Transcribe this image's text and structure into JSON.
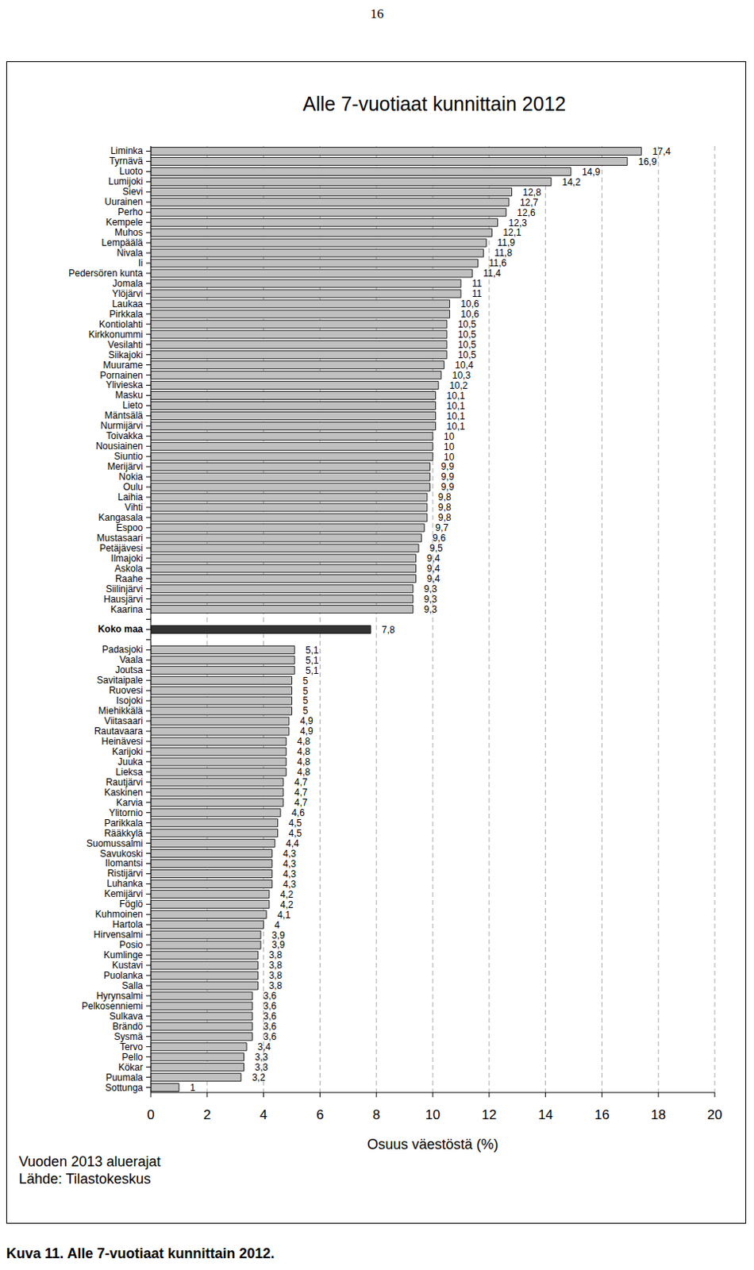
{
  "page_number": "16",
  "caption": "Kuva 11. Alle 7-vuotiaat kunnittain 2012.",
  "chart_data": {
    "type": "bar",
    "orientation": "horizontal",
    "title": "Alle 7-vuotiaat kunnittain 2012",
    "x_label": "Osuus väestöstä (%)",
    "annotations": [
      "Vuoden 2013 aluerajat",
      "Lähde: Tilastokeskus"
    ],
    "categories": [
      "Liminka",
      "Tyrnävä",
      "Luoto",
      "Lumijoki",
      "Sievi",
      "Uurainen",
      "Perho",
      "Kempele",
      "Muhos",
      "Lempäälä",
      "Nivala",
      "Ii",
      "Pedersören kunta",
      "Jomala",
      "Ylöjärvi",
      "Laukaa",
      "Pirkkala",
      "Kontiolahti",
      "Kirkkonummi",
      "Vesilahti",
      "Siikajoki",
      "Muurame",
      "Pornainen",
      "Ylivieska",
      "Masku",
      "Lieto",
      "Mäntsälä",
      "Nurmijärvi",
      "Toivakka",
      "Nousiainen",
      "Siuntio",
      "Merijärvi",
      "Nokia",
      "Oulu",
      "Laihia",
      "Vihti",
      "Kangasala",
      "Espoo",
      "Mustasaari",
      "Petäjävesi",
      "Ilmajoki",
      "Askola",
      "Raahe",
      "Siilinjärvi",
      "Hausjärvi",
      "Kaarina",
      null,
      "Koko maa",
      null,
      "Padasjoki",
      "Vaala",
      "Joutsa",
      "Savitaipale",
      "Ruovesi",
      "Isojoki",
      "Miehikkälä",
      "Viitasaari",
      "Rautavaara",
      "Heinävesi",
      "Karijoki",
      "Juuka",
      "Lieksa",
      "Rautjärvi",
      "Kaskinen",
      "Karvia",
      "Ylitornio",
      "Parikkala",
      "Rääkkylä",
      "Suomussalmi",
      "Savukoski",
      "Ilomantsi",
      "Ristijärvi",
      "Luhanka",
      "Kemijärvi",
      "Föglö",
      "Kuhmoinen",
      "Hartola",
      "Hirvensalmi",
      "Posio",
      "Kumlinge",
      "Kustavi",
      "Puolanka",
      "Salla",
      "Hyrynsalmi",
      "Pelkosenniemi",
      "Sulkava",
      "Brändö",
      "Sysmä",
      "Tervo",
      "Pello",
      "Kökar",
      "Puumala",
      "Sottunga"
    ],
    "values": [
      17.4,
      16.9,
      14.9,
      14.2,
      12.8,
      12.7,
      12.6,
      12.3,
      12.1,
      11.9,
      11.8,
      11.6,
      11.4,
      11,
      11,
      10.6,
      10.6,
      10.5,
      10.5,
      10.5,
      10.5,
      10.4,
      10.3,
      10.2,
      10.1,
      10.1,
      10.1,
      10.1,
      10,
      10,
      10,
      9.9,
      9.9,
      9.9,
      9.8,
      9.8,
      9.8,
      9.7,
      9.6,
      9.5,
      9.4,
      9.4,
      9.4,
      9.3,
      9.3,
      9.3,
      null,
      7.8,
      null,
      5.1,
      5.1,
      5.1,
      5,
      5,
      5,
      5,
      4.9,
      4.9,
      4.8,
      4.8,
      4.8,
      4.8,
      4.7,
      4.7,
      4.7,
      4.6,
      4.5,
      4.5,
      4.4,
      4.3,
      4.3,
      4.3,
      4.3,
      4.2,
      4.2,
      4.1,
      4,
      3.9,
      3.9,
      3.8,
      3.8,
      3.8,
      3.8,
      3.6,
      3.6,
      3.6,
      3.6,
      3.6,
      3.4,
      3.3,
      3.3,
      3.2,
      1
    ],
    "value_labels": [
      "17,4",
      "16,9",
      "14,9",
      "14,2",
      "12,8",
      "12,7",
      "12,6",
      "12,3",
      "12,1",
      "11,9",
      "11,8",
      "11,6",
      "11,4",
      "11",
      "11",
      "10,6",
      "10,6",
      "10,5",
      "10,5",
      "10,5",
      "10,5",
      "10,4",
      "10,3",
      "10,2",
      "10,1",
      "10,1",
      "10,1",
      "10,1",
      "10",
      "10",
      "10",
      "9,9",
      "9,9",
      "9,9",
      "9,8",
      "9,8",
      "9,8",
      "9,7",
      "9,6",
      "9,5",
      "9,4",
      "9,4",
      "9,4",
      "9,3",
      "9,3",
      "9,3",
      null,
      "7,8",
      null,
      "5,1",
      "5,1",
      "5,1",
      "5",
      "5",
      "5",
      "5",
      "4,9",
      "4,9",
      "4,8",
      "4,8",
      "4,8",
      "4,8",
      "4,7",
      "4,7",
      "4,7",
      "4,6",
      "4,5",
      "4,5",
      "4,4",
      "4,3",
      "4,3",
      "4,3",
      "4,3",
      "4,2",
      "4,2",
      "4,1",
      "4",
      "3,9",
      "3,9",
      "3,8",
      "3,8",
      "3,8",
      "3,8",
      "3,6",
      "3,6",
      "3,6",
      "3,6",
      "3,6",
      "3,4",
      "3,3",
      "3,3",
      "3,2",
      "1"
    ],
    "colors": [
      "#c0c0c0",
      "#c0c0c0",
      "#c0c0c0",
      "#c0c0c0",
      "#c0c0c0",
      "#c0c0c0",
      "#c0c0c0",
      "#c0c0c0",
      "#c0c0c0",
      "#c0c0c0",
      "#c0c0c0",
      "#c0c0c0",
      "#c0c0c0",
      "#c0c0c0",
      "#c0c0c0",
      "#c0c0c0",
      "#c0c0c0",
      "#c0c0c0",
      "#c0c0c0",
      "#c0c0c0",
      "#c0c0c0",
      "#c0c0c0",
      "#c0c0c0",
      "#c0c0c0",
      "#c0c0c0",
      "#c0c0c0",
      "#c0c0c0",
      "#c0c0c0",
      "#c0c0c0",
      "#c0c0c0",
      "#c0c0c0",
      "#c0c0c0",
      "#c0c0c0",
      "#c0c0c0",
      "#c0c0c0",
      "#c0c0c0",
      "#c0c0c0",
      "#c0c0c0",
      "#c0c0c0",
      "#c0c0c0",
      "#c0c0c0",
      "#c0c0c0",
      "#c0c0c0",
      "#c0c0c0",
      "#c0c0c0",
      "#c0c0c0",
      null,
      "#333333",
      null,
      "#c0c0c0",
      "#c0c0c0",
      "#c0c0c0",
      "#c0c0c0",
      "#c0c0c0",
      "#c0c0c0",
      "#c0c0c0",
      "#c0c0c0",
      "#c0c0c0",
      "#c0c0c0",
      "#c0c0c0",
      "#c0c0c0",
      "#c0c0c0",
      "#c0c0c0",
      "#c0c0c0",
      "#c0c0c0",
      "#c0c0c0",
      "#c0c0c0",
      "#c0c0c0",
      "#c0c0c0",
      "#c0c0c0",
      "#c0c0c0",
      "#c0c0c0",
      "#c0c0c0",
      "#c0c0c0",
      "#c0c0c0",
      "#c0c0c0",
      "#c0c0c0",
      "#c0c0c0",
      "#c0c0c0",
      "#c0c0c0",
      "#c0c0c0",
      "#c0c0c0",
      "#c0c0c0",
      "#c0c0c0",
      "#c0c0c0",
      "#c0c0c0",
      "#c0c0c0",
      "#c0c0c0",
      "#c0c0c0",
      "#c0c0c0",
      "#c0c0c0",
      "#c0c0c0",
      "#c0c0c0"
    ],
    "xlim": [
      0,
      20
    ],
    "xticks": [
      0,
      2,
      4,
      6,
      8,
      10,
      12,
      14,
      16,
      18,
      20
    ],
    "grid": true,
    "data_labels": true
  }
}
